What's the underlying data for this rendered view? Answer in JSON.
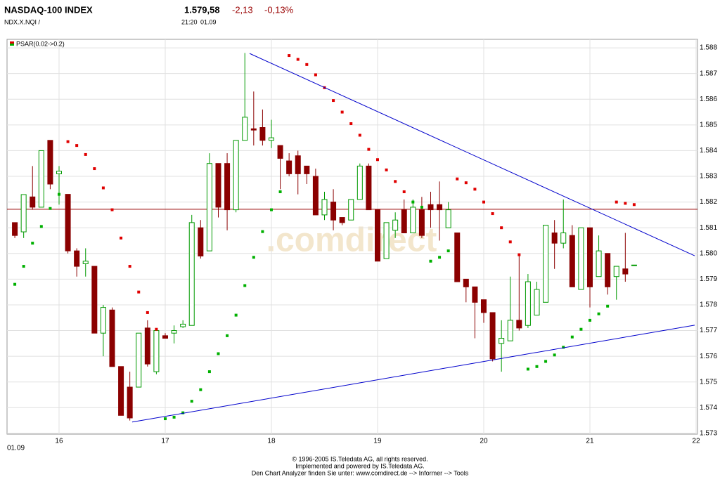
{
  "header": {
    "title": "NASDAQ-100 INDEX",
    "price": "1.579,58",
    "change": "-2,13",
    "change_pct": "-0,13%",
    "symbol": "NDX.X.NQI  /",
    "time": "21:20",
    "date": "01.09"
  },
  "chart_data": {
    "type": "candlestick",
    "watermark": ".comdirect",
    "date_label": "01.09",
    "x": [
      935,
      940,
      945,
      950,
      955,
      960,
      965,
      970,
      975,
      980,
      985,
      990,
      995,
      1000,
      1005,
      1010,
      1015,
      1020,
      1025,
      1030,
      1035,
      1040,
      1045,
      1050,
      1055,
      1060,
      1065,
      1070,
      1075,
      1080,
      1085,
      1090,
      1095,
      1100,
      1105,
      1110,
      1115,
      1120,
      1125,
      1130,
      1135,
      1140,
      1145,
      1150,
      1155,
      1160,
      1165,
      1170,
      1175,
      1180,
      1185,
      1190,
      1195,
      1200,
      1205,
      1210,
      1215,
      1220,
      1225,
      1230,
      1235,
      1240,
      1245,
      1250,
      1255,
      1260,
      1265,
      1270,
      1275,
      1280,
      1285
    ],
    "open": [
      1581.2,
      1580.84,
      1582.2,
      1581.8,
      1584.4,
      1583.1,
      1582.3,
      1580.1,
      1579.6,
      1579.5,
      1576.9,
      1577.8,
      1575.6,
      1574.8,
      1574.8,
      1577.1,
      1575.4,
      1576.8,
      1576.9,
      1577.15,
      1577.2,
      1581.0,
      1580.1,
      1583.5,
      1583.5,
      1581.7,
      1584.4,
      1584.85,
      1584.9,
      1584.4,
      1584.2,
      1583.6,
      1583.8,
      1583.4,
      1583.0,
      1581.5,
      1582.0,
      1581.4,
      1581.3,
      1582.1,
      1583.4,
      1581.7,
      1579.8,
      1580.9,
      1581.7,
      1580.8,
      1581.7,
      1581.9,
      1581.9,
      1581.0,
      1580.8,
      1579.0,
      1578.7,
      1578.2,
      1577.7,
      1576.5,
      1576.6,
      1577.4,
      1577.2,
      1577.6,
      1578.1,
      1580.8,
      1580.4,
      1580.7,
      1578.6,
      1581.0,
      1579.1,
      1580.0,
      1579.1,
      1579.4,
      1579.55
    ],
    "high": [
      1581.2,
      1582.3,
      1583.4,
      1584.0,
      1584.4,
      1583.4,
      1582.3,
      1580.2,
      1580.2,
      1579.5,
      1578.0,
      1577.9,
      1575.6,
      1575.4,
      1576.9,
      1577.4,
      1577.0,
      1576.9,
      1577.2,
      1577.4,
      1581.5,
      1581.3,
      1583.9,
      1583.5,
      1583.9,
      1584.4,
      1587.8,
      1586.3,
      1585.6,
      1585.2,
      1584.2,
      1583.9,
      1584.0,
      1583.4,
      1583.3,
      1582.4,
      1582.5,
      1581.4,
      1582.1,
      1583.5,
      1583.5,
      1581.7,
      1581.2,
      1581.6,
      1582.1,
      1582.1,
      1582.2,
      1582.4,
      1582.8,
      1582.0,
      1580.8,
      1579.0,
      1578.7,
      1578.2,
      1577.7,
      1577.4,
      1579.1,
      1579.9,
      1579.2,
      1578.9,
      1581.1,
      1581.3,
      1582.1,
      1581.1,
      1581.0,
      1581.0,
      1580.7,
      1580.0,
      1579.5,
      1580.8,
      1579.55
    ],
    "low": [
      1580.6,
      1580.6,
      1581.7,
      1581.8,
      1582.5,
      1581.9,
      1580.0,
      1579.1,
      1579.1,
      1576.9,
      1576.0,
      1575.6,
      1573.7,
      1573.5,
      1574.8,
      1575.6,
      1575.3,
      1576.7,
      1576.5,
      1577.1,
      1577.2,
      1579.8,
      1580.1,
      1581.4,
      1580.9,
      1581.6,
      1584.4,
      1584.2,
      1584.2,
      1584.1,
      1582.5,
      1583.0,
      1582.3,
      1582.7,
      1581.5,
      1581.3,
      1580.9,
      1581.1,
      1581.3,
      1582.1,
      1581.7,
      1579.7,
      1579.8,
      1580.6,
      1580.8,
      1580.8,
      1580.6,
      1581.0,
      1580.5,
      1581.0,
      1578.9,
      1578.1,
      1576.7,
      1577.3,
      1575.8,
      1575.4,
      1576.6,
      1577.0,
      1577.1,
      1577.6,
      1578.1,
      1579.4,
      1580.2,
      1578.7,
      1578.6,
      1577.9,
      1579.1,
      1578.4,
      1578.2,
      1578.9,
      1579.55
    ],
    "close": [
      1580.7,
      1582.29,
      1581.8,
      1584.0,
      1582.7,
      1583.2,
      1580.1,
      1579.5,
      1579.7,
      1576.9,
      1577.9,
      1575.6,
      1573.7,
      1573.6,
      1576.9,
      1575.7,
      1577.0,
      1576.7,
      1577.0,
      1577.25,
      1581.2,
      1579.9,
      1583.5,
      1581.8,
      1581.7,
      1584.4,
      1585.3,
      1584.8,
      1584.4,
      1584.5,
      1583.7,
      1583.1,
      1583.1,
      1583.1,
      1581.5,
      1582.1,
      1581.3,
      1581.2,
      1582.1,
      1583.4,
      1581.7,
      1579.7,
      1581.2,
      1581.3,
      1580.8,
      1581.8,
      1580.7,
      1581.7,
      1581.7,
      1581.7,
      1578.9,
      1578.7,
      1578.1,
      1577.7,
      1575.9,
      1576.7,
      1577.4,
      1577.1,
      1578.9,
      1578.6,
      1581.1,
      1580.4,
      1580.8,
      1578.7,
      1581.0,
      1578.7,
      1580.1,
      1578.7,
      1579.5,
      1579.2,
      1579.55
    ],
    "up_color": "#009900",
    "down_color": "#8b0000",
    "indicator": {
      "name": "PSAR(0.02->0.2)",
      "colors": [
        "#e00000",
        "#00b000"
      ],
      "values": [
        1578.8,
        1579.5,
        1580.4,
        1581.05,
        1581.75,
        1582.3,
        1584.35,
        1584.2,
        1583.85,
        1583.3,
        1582.55,
        1581.7,
        1580.6,
        1579.5,
        1578.5,
        1577.7,
        1577.05,
        1573.57,
        1573.63,
        1573.8,
        1574.25,
        1574.7,
        1575.4,
        1576.1,
        1576.8,
        1577.6,
        1578.75,
        1579.85,
        1580.85,
        1581.7,
        1582.4,
        1587.7,
        1587.55,
        1587.35,
        1586.95,
        1586.45,
        1585.95,
        1585.5,
        1585.05,
        1584.6,
        1584.05,
        1583.65,
        1583.25,
        1582.8,
        1582.4,
        1582.0,
        1581.8,
        1579.7,
        1579.85,
        1580.1,
        1582.9,
        1582.75,
        1582.5,
        1582.0,
        1581.55,
        1581.0,
        1580.45,
        1579.95,
        1575.5,
        1575.6,
        1575.8,
        1576.05,
        1576.35,
        1576.75,
        1577.05,
        1577.4,
        1577.65,
        1577.95,
        1582.0,
        1581.95,
        1581.9
      ]
    },
    "trendlines": [
      {
        "x": [
          1067.7,
          1319.2
        ],
        "values": [
          1587.78,
          1579.91
        ],
        "color": "#0000cc"
      },
      {
        "x": [
          1001.3,
          1319.2
        ],
        "values": [
          1573.44,
          1577.21
        ],
        "color": "#0000cc"
      }
    ],
    "hline": {
      "value": 1581.72,
      "color": "#990000"
    },
    "xlim": [
      930.6,
      1320.8
    ],
    "ylim": [
      1572.97,
      1588.33
    ],
    "xticks": [
      {
        "value": 960,
        "label": "16"
      },
      {
        "value": 1020,
        "label": "17"
      },
      {
        "value": 1080,
        "label": "18"
      },
      {
        "value": 1140,
        "label": "19"
      },
      {
        "value": 1200,
        "label": "20"
      },
      {
        "value": 1260,
        "label": "21"
      },
      {
        "value": 1320,
        "label": "22"
      }
    ],
    "yticks": [
      {
        "value": 1573,
        "label": "1.573"
      },
      {
        "value": 1574,
        "label": "1.574"
      },
      {
        "value": 1575,
        "label": "1.575"
      },
      {
        "value": 1576,
        "label": "1.576"
      },
      {
        "value": 1577,
        "label": "1.577"
      },
      {
        "value": 1578,
        "label": "1.578"
      },
      {
        "value": 1579,
        "label": "1.579"
      },
      {
        "value": 1580,
        "label": "1.580"
      },
      {
        "value": 1581,
        "label": "1.581"
      },
      {
        "value": 1582,
        "label": "1.582"
      },
      {
        "value": 1583,
        "label": "1.583"
      },
      {
        "value": 1584,
        "label": "1.584"
      },
      {
        "value": 1585,
        "label": "1.585"
      },
      {
        "value": 1586,
        "label": "1.586"
      },
      {
        "value": 1587,
        "label": "1.587"
      },
      {
        "value": 1588,
        "label": "1.588"
      }
    ],
    "grid": true
  },
  "footer": {
    "lines": [
      "© 1996-2005 IS.Teledata AG, all rights reserved.",
      "Implemented and powered by IS.Teledata AG.",
      "Den Chart Analyzer finden Sie unter: www.comdirect.de --> Informer --> Tools"
    ]
  }
}
